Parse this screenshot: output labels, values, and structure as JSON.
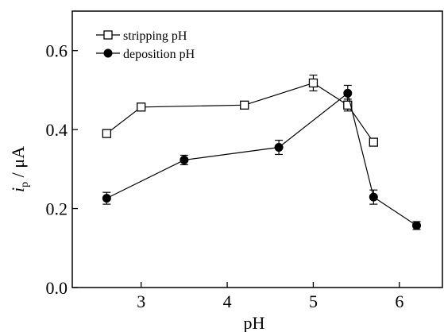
{
  "chart_data": {
    "type": "line",
    "xlabel": "pH",
    "ylabel_main": "i",
    "ylabel_sub": "p",
    "ylabel_unit": " / μA",
    "xlim": [
      2.2,
      6.5
    ],
    "ylim": [
      0.0,
      0.7
    ],
    "xticks": [
      3,
      4,
      5,
      6
    ],
    "xtick_labels": [
      "3",
      "4",
      "5",
      "6"
    ],
    "yticks": [
      0.0,
      0.2,
      0.4,
      0.6
    ],
    "ytick_labels": [
      "0.0",
      "0.2",
      "0.4",
      "0.6"
    ],
    "grid": false,
    "legend_position": "top-left",
    "series": [
      {
        "name": "stripping pH",
        "marker": "open-square",
        "color": "#000000",
        "x": [
          2.6,
          3.0,
          4.2,
          5.0,
          5.4,
          5.7
        ],
        "y": [
          0.39,
          0.457,
          0.462,
          0.518,
          0.462,
          0.368
        ],
        "err": [
          0.008,
          0.008,
          0.008,
          0.02,
          0.015,
          0.008
        ]
      },
      {
        "name": "deposition pH",
        "marker": "filled-circle",
        "color": "#000000",
        "x": [
          2.6,
          3.5,
          4.6,
          5.4,
          5.7,
          6.2
        ],
        "y": [
          0.226,
          0.323,
          0.355,
          0.492,
          0.229,
          0.157
        ],
        "err": [
          0.015,
          0.012,
          0.018,
          0.02,
          0.018,
          0.01
        ]
      }
    ]
  }
}
